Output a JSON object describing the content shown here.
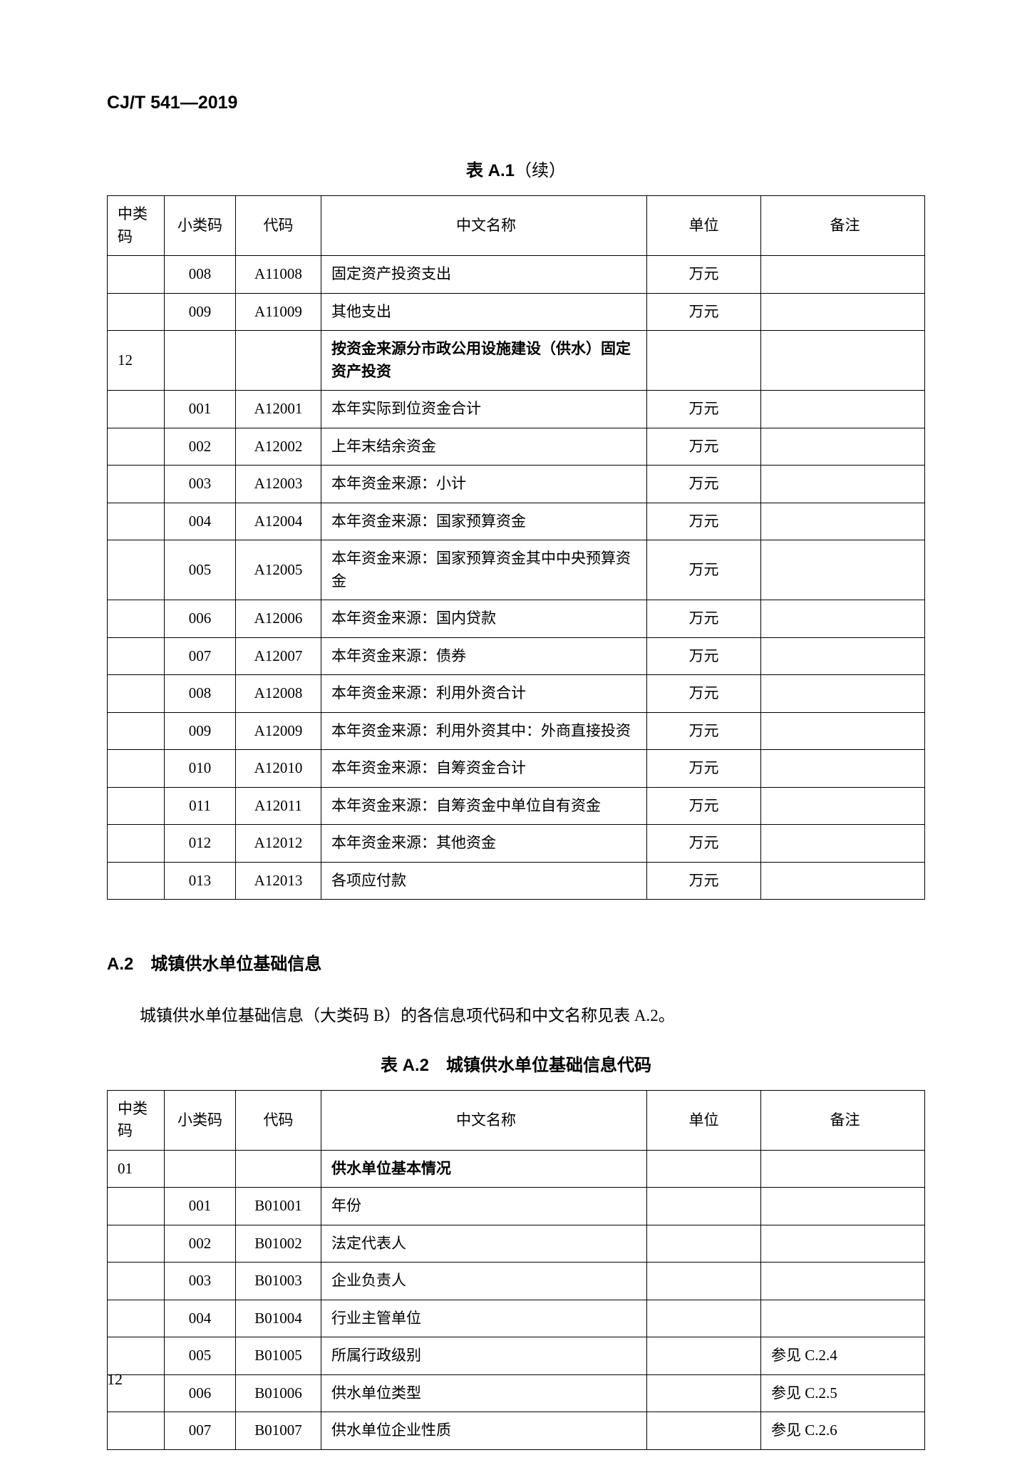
{
  "doc_code": "CJ/T 541—2019",
  "table_a1": {
    "caption_prefix": "表 A.1",
    "caption_suffix": "（续）",
    "headers": {
      "mid": "中类码",
      "sub": "小类码",
      "code": "代码",
      "name": "中文名称",
      "unit": "单位",
      "note": "备注"
    },
    "rows": [
      {
        "mid": "",
        "sub": "008",
        "code": "A11008",
        "name": "固定资产投资支出",
        "unit": "万元",
        "note": "",
        "bold": false
      },
      {
        "mid": "",
        "sub": "009",
        "code": "A11009",
        "name": "其他支出",
        "unit": "万元",
        "note": "",
        "bold": false
      },
      {
        "mid": "12",
        "sub": "",
        "code": "",
        "name": "按资金来源分市政公用设施建设（供水）固定资产投资",
        "unit": "",
        "note": "",
        "bold": true
      },
      {
        "mid": "",
        "sub": "001",
        "code": "A12001",
        "name": "本年实际到位资金合计",
        "unit": "万元",
        "note": "",
        "bold": false
      },
      {
        "mid": "",
        "sub": "002",
        "code": "A12002",
        "name": "上年末结余资金",
        "unit": "万元",
        "note": "",
        "bold": false
      },
      {
        "mid": "",
        "sub": "003",
        "code": "A12003",
        "name": "本年资金来源：小计",
        "unit": "万元",
        "note": "",
        "bold": false
      },
      {
        "mid": "",
        "sub": "004",
        "code": "A12004",
        "name": "本年资金来源：国家预算资金",
        "unit": "万元",
        "note": "",
        "bold": false
      },
      {
        "mid": "",
        "sub": "005",
        "code": "A12005",
        "name": "本年资金来源：国家预算资金其中中央预算资金",
        "unit": "万元",
        "note": "",
        "bold": false
      },
      {
        "mid": "",
        "sub": "006",
        "code": "A12006",
        "name": "本年资金来源：国内贷款",
        "unit": "万元",
        "note": "",
        "bold": false
      },
      {
        "mid": "",
        "sub": "007",
        "code": "A12007",
        "name": "本年资金来源：债券",
        "unit": "万元",
        "note": "",
        "bold": false
      },
      {
        "mid": "",
        "sub": "008",
        "code": "A12008",
        "name": "本年资金来源：利用外资合计",
        "unit": "万元",
        "note": "",
        "bold": false
      },
      {
        "mid": "",
        "sub": "009",
        "code": "A12009",
        "name": "本年资金来源：利用外资其中：外商直接投资",
        "unit": "万元",
        "note": "",
        "bold": false
      },
      {
        "mid": "",
        "sub": "010",
        "code": "A12010",
        "name": "本年资金来源：自筹资金合计",
        "unit": "万元",
        "note": "",
        "bold": false
      },
      {
        "mid": "",
        "sub": "011",
        "code": "A12011",
        "name": "本年资金来源：自筹资金中单位自有资金",
        "unit": "万元",
        "note": "",
        "bold": false
      },
      {
        "mid": "",
        "sub": "012",
        "code": "A12012",
        "name": "本年资金来源：其他资金",
        "unit": "万元",
        "note": "",
        "bold": false
      },
      {
        "mid": "",
        "sub": "013",
        "code": "A12013",
        "name": "各项应付款",
        "unit": "万元",
        "note": "",
        "bold": false
      }
    ]
  },
  "section_a2": {
    "heading": "A.2　城镇供水单位基础信息",
    "text": "城镇供水单位基础信息（大类码 B）的各信息项代码和中文名称见表 A.2。"
  },
  "table_a2": {
    "caption": "表 A.2　城镇供水单位基础信息代码",
    "headers": {
      "mid": "中类码",
      "sub": "小类码",
      "code": "代码",
      "name": "中文名称",
      "unit": "单位",
      "note": "备注"
    },
    "rows": [
      {
        "mid": "01",
        "sub": "",
        "code": "",
        "name": "供水单位基本情况",
        "unit": "",
        "note": "",
        "bold": true
      },
      {
        "mid": "",
        "sub": "001",
        "code": "B01001",
        "name": "年份",
        "unit": "",
        "note": "",
        "bold": false
      },
      {
        "mid": "",
        "sub": "002",
        "code": "B01002",
        "name": "法定代表人",
        "unit": "",
        "note": "",
        "bold": false
      },
      {
        "mid": "",
        "sub": "003",
        "code": "B01003",
        "name": "企业负责人",
        "unit": "",
        "note": "",
        "bold": false
      },
      {
        "mid": "",
        "sub": "004",
        "code": "B01004",
        "name": "行业主管单位",
        "unit": "",
        "note": "",
        "bold": false
      },
      {
        "mid": "",
        "sub": "005",
        "code": "B01005",
        "name": "所属行政级别",
        "unit": "",
        "note": "参见 C.2.4",
        "bold": false
      },
      {
        "mid": "",
        "sub": "006",
        "code": "B01006",
        "name": "供水单位类型",
        "unit": "",
        "note": "参见 C.2.5",
        "bold": false
      },
      {
        "mid": "",
        "sub": "007",
        "code": "B01007",
        "name": "供水单位企业性质",
        "unit": "",
        "note": "参见 C.2.6",
        "bold": false
      }
    ]
  },
  "page_number": "12"
}
